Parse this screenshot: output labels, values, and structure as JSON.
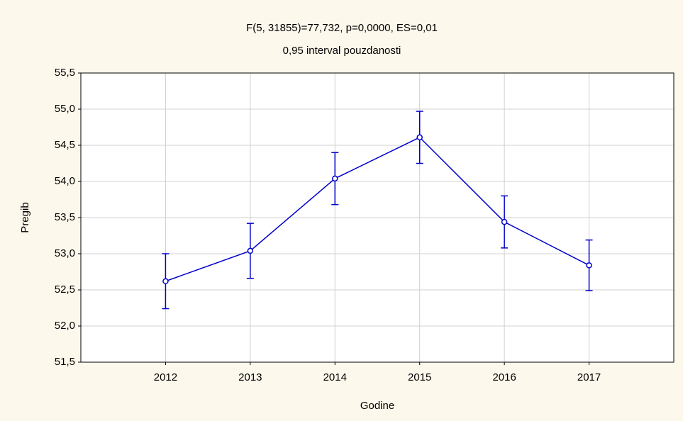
{
  "chart_data": {
    "type": "errorbar-line",
    "title": "F(5, 31855)=77,732, p=0,0000, ES=0,01",
    "subtitle": "0,95 interval pouzdanosti",
    "xlabel": "Godine",
    "ylabel": "Pregib",
    "categories": [
      "2012",
      "2013",
      "2014",
      "2015",
      "2016",
      "2017"
    ],
    "series": [
      {
        "color": "#0000cc",
        "values": [
          52.62,
          53.04,
          54.04,
          54.61,
          53.44,
          52.84
        ],
        "errors": [
          0.38,
          0.38,
          0.36,
          0.36,
          0.36,
          0.35
        ]
      }
    ],
    "ylim": [
      51.5,
      55.5
    ],
    "yticks": [
      {
        "value": 51.5,
        "label": "51,5"
      },
      {
        "value": 52,
        "label": "52,0"
      },
      {
        "value": 52.5,
        "label": "52,5"
      },
      {
        "value": 53,
        "label": "53,0"
      },
      {
        "value": 53.5,
        "label": "53,5"
      },
      {
        "value": 54,
        "label": "54,0"
      },
      {
        "value": 54.5,
        "label": "54,5"
      },
      {
        "value": 55,
        "label": "55,0"
      },
      {
        "value": 55.5,
        "label": "55,5"
      }
    ],
    "grid": true
  }
}
